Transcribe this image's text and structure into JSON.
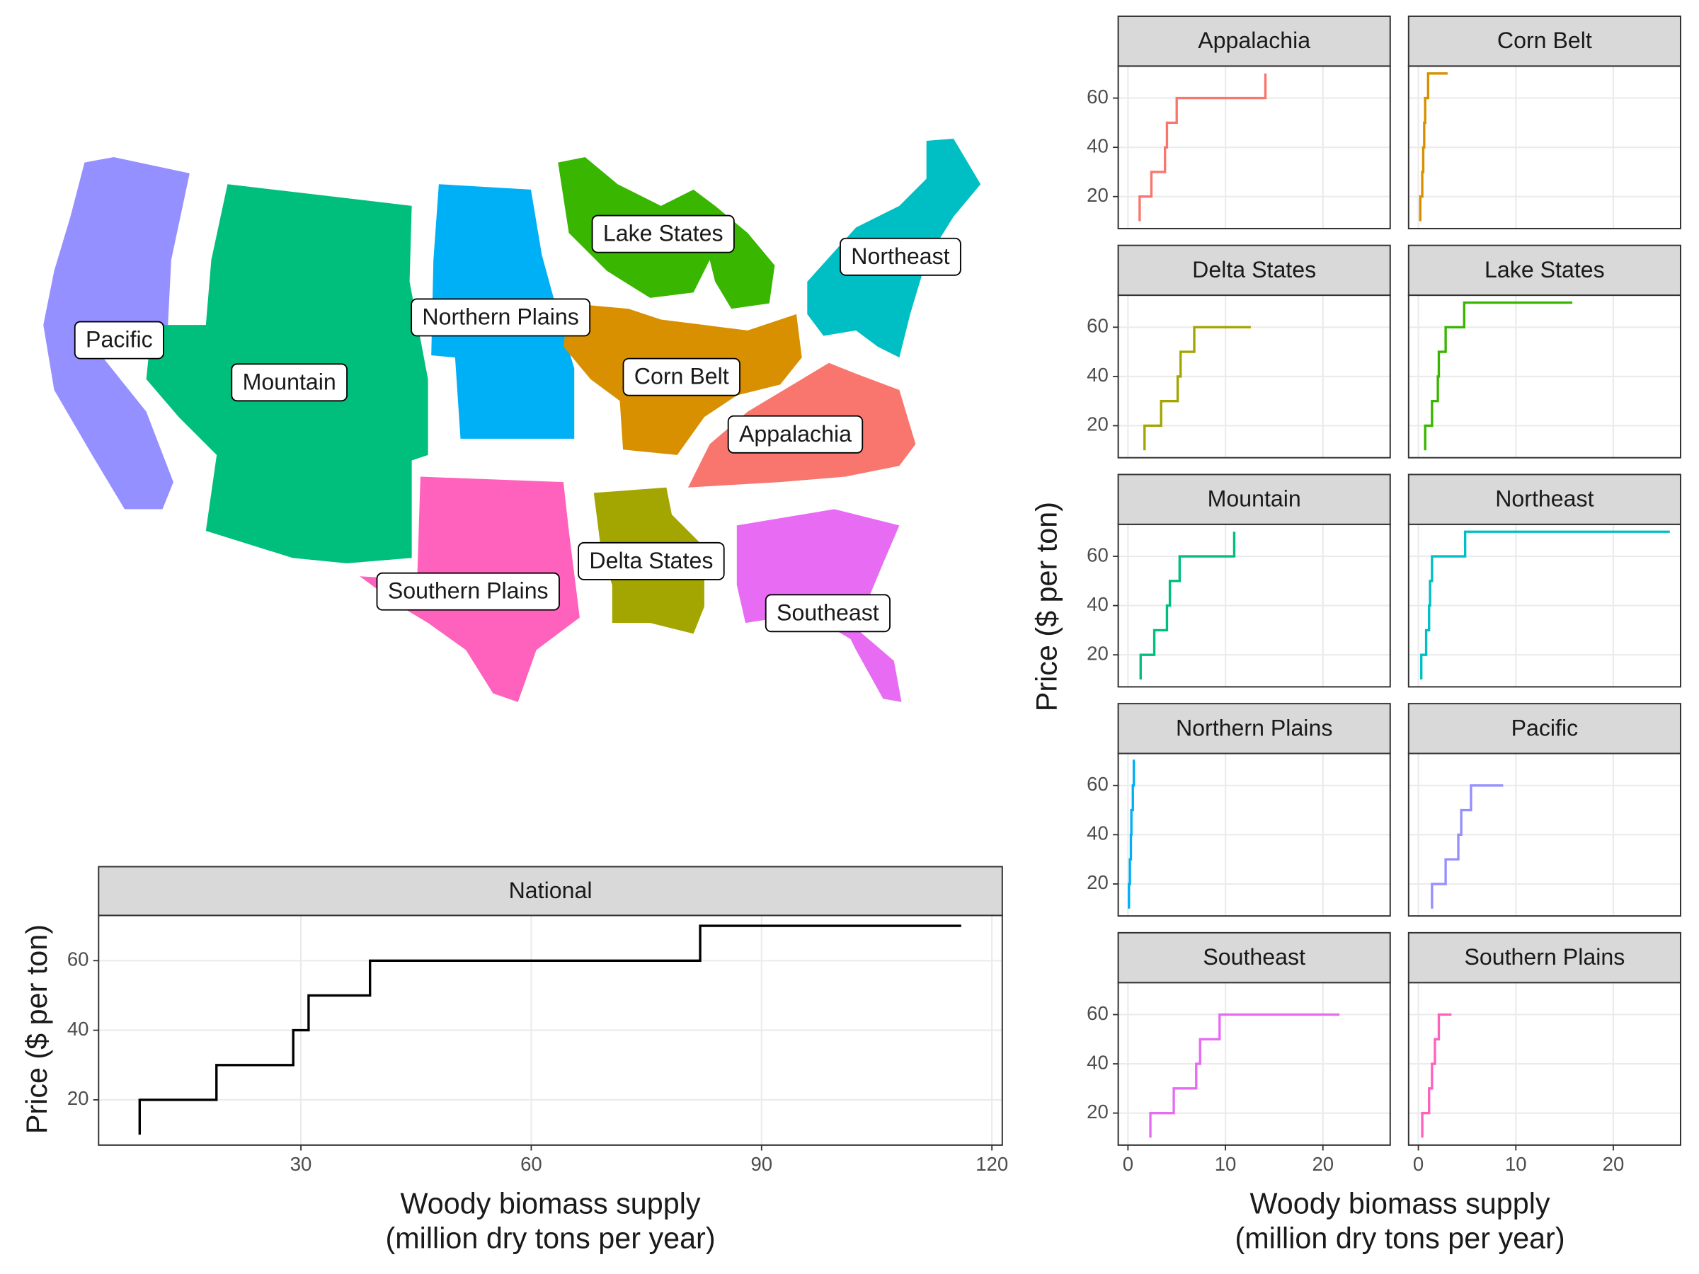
{
  "chart_data": [
    {
      "type": "map",
      "regions": [
        {
          "name": "Pacific",
          "color": "#9590FF"
        },
        {
          "name": "Mountain",
          "color": "#00BF7D"
        },
        {
          "name": "Northern Plains",
          "color": "#00B0F6"
        },
        {
          "name": "Lake States",
          "color": "#39B600"
        },
        {
          "name": "Northeast",
          "color": "#00BFC4"
        },
        {
          "name": "Corn Belt",
          "color": "#D89000"
        },
        {
          "name": "Appalachia",
          "color": "#F8766D"
        },
        {
          "name": "Southern Plains",
          "color": "#FF62BC"
        },
        {
          "name": "Delta States",
          "color": "#A3A500"
        },
        {
          "name": "Southeast",
          "color": "#E76BF3"
        }
      ]
    },
    {
      "type": "step",
      "title": "National",
      "xlabel": [
        "Woody biomass supply",
        "(million dry tons per year)"
      ],
      "ylabel": "Price ($ per ton)",
      "x": [
        9,
        19,
        29,
        31,
        39,
        82,
        116
      ],
      "y": [
        10,
        20,
        30,
        40,
        50,
        60,
        70
      ],
      "color": "#000000",
      "xlim": [
        3.65,
        121.35
      ],
      "ylim": [
        7,
        73
      ],
      "xticks": [
        30,
        60,
        90,
        120
      ],
      "yticks": [
        20,
        40,
        60
      ],
      "grid": true
    },
    {
      "type": "step-facets",
      "xlabel": [
        "Woody biomass supply",
        "(million dry tons per year)"
      ],
      "ylabel": "Price ($ per ton)",
      "xlim": [
        -1.0,
        26.9
      ],
      "ylim": [
        7,
        73
      ],
      "xticks": [
        0,
        10,
        20
      ],
      "yticks": [
        20,
        40,
        60
      ],
      "grid": true,
      "panels": [
        {
          "name": "Appalachia",
          "color": "#F8766D",
          "x": [
            1.2,
            2.4,
            3.8,
            4.0,
            5.0,
            14.1,
            14.1
          ],
          "y": [
            10,
            20,
            30,
            40,
            50,
            60,
            70
          ]
        },
        {
          "name": "Corn Belt",
          "color": "#D89000",
          "x": [
            0.2,
            0.4,
            0.5,
            0.6,
            0.7,
            1.0,
            3.0
          ],
          "y": [
            10,
            20,
            30,
            40,
            50,
            60,
            70
          ]
        },
        {
          "name": "Delta States",
          "color": "#A3A500",
          "x": [
            1.7,
            3.4,
            5.1,
            5.4,
            6.8,
            12.6
          ],
          "y": [
            10,
            20,
            30,
            40,
            50,
            60
          ]
        },
        {
          "name": "Lake States",
          "color": "#39B600",
          "x": [
            0.7,
            1.4,
            2.0,
            2.1,
            2.8,
            4.7,
            15.8
          ],
          "y": [
            10,
            20,
            30,
            40,
            50,
            60,
            70
          ]
        },
        {
          "name": "Mountain",
          "color": "#00BF7D",
          "x": [
            1.3,
            2.7,
            4.0,
            4.3,
            5.3,
            10.9,
            10.9
          ],
          "y": [
            10,
            20,
            30,
            40,
            50,
            60,
            70
          ]
        },
        {
          "name": "Northeast",
          "color": "#00BFC4",
          "x": [
            0.3,
            0.8,
            1.1,
            1.2,
            1.4,
            4.8,
            25.8
          ],
          "y": [
            10,
            20,
            30,
            40,
            50,
            60,
            70
          ]
        },
        {
          "name": "Northern Plains",
          "color": "#00B0F6",
          "x": [
            0.1,
            0.2,
            0.3,
            0.35,
            0.5,
            0.6,
            0.7
          ],
          "y": [
            10,
            20,
            30,
            40,
            50,
            60,
            70
          ]
        },
        {
          "name": "Pacific",
          "color": "#9590FF",
          "x": [
            1.4,
            2.8,
            4.1,
            4.4,
            5.4,
            8.7
          ],
          "y": [
            10,
            20,
            30,
            40,
            50,
            60
          ]
        },
        {
          "name": "Southeast",
          "color": "#E76BF3",
          "x": [
            2.3,
            4.7,
            7.0,
            7.4,
            9.4,
            21.7
          ],
          "y": [
            10,
            20,
            30,
            40,
            50,
            60
          ]
        },
        {
          "name": "Southern Plains",
          "color": "#FF62BC",
          "x": [
            0.4,
            1.1,
            1.4,
            1.7,
            2.1,
            3.4
          ],
          "y": [
            10,
            20,
            30,
            40,
            50,
            60
          ]
        }
      ]
    }
  ]
}
